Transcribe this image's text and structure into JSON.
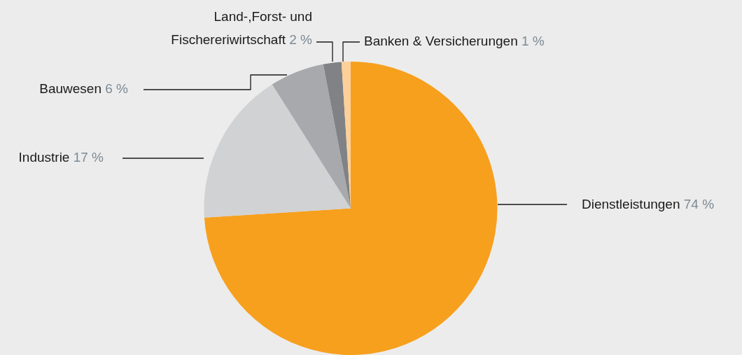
{
  "chart_data": {
    "type": "pie",
    "categories": [
      "Dienstleistungen",
      "Industrie",
      "Bauwesen",
      "Land-,Forst- und Fischereriwirtschaft",
      "Banken & Versicherungen"
    ],
    "values": [
      74,
      17,
      6,
      2,
      1
    ],
    "value_labels": [
      "74 %",
      "17 %",
      "6 %",
      "2 %",
      "1 %"
    ],
    "colors": [
      "#f7a01e",
      "#d1d2d4",
      "#a7a9ac",
      "#808285",
      "#fdd09a"
    ],
    "legend": false
  }
}
